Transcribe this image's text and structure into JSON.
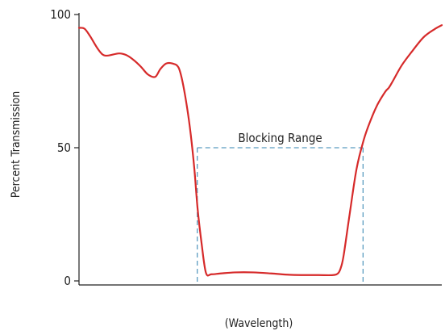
{
  "chart_data": {
    "type": "line",
    "title": "",
    "xlabel": "(Wavelength)",
    "ylabel": "Percent Transmission",
    "ylim": [
      0,
      100
    ],
    "yticks": [
      0,
      50,
      100
    ],
    "xlim": [
      0,
      100
    ],
    "grid": false,
    "series": [
      {
        "color": "#d62a2a",
        "x": [
          0,
          1.5,
          3,
          5,
          6.5,
          8,
          11,
          13,
          15,
          17,
          19,
          21,
          22.4,
          24,
          25.8,
          27.4,
          28.5,
          29.8,
          30.8,
          31.8,
          32.7,
          33.8,
          35,
          36.5,
          39,
          43,
          48,
          53,
          58,
          62,
          66,
          70,
          71.5,
          72.3,
          73,
          74.6,
          76.5,
          78.5,
          80.3,
          82.2,
          84.4,
          85.4,
          86.5,
          89,
          92,
          95,
          98,
          100
        ],
        "y": [
          95,
          94.7,
          92,
          87.5,
          85,
          84.6,
          85.4,
          84.8,
          83,
          80.5,
          77.5,
          76.6,
          79.5,
          81.6,
          81.6,
          80.2,
          75,
          65,
          55,
          42,
          27,
          14,
          3,
          2.5,
          2.8,
          3.2,
          3.2,
          2.8,
          2.3,
          2.2,
          2.2,
          2.2,
          3,
          5.5,
          10,
          25,
          42,
          53,
          60,
          66,
          71,
          72.5,
          75,
          81,
          86.5,
          91.5,
          94.5,
          96
        ]
      }
    ],
    "annotations": [
      {
        "type": "range",
        "label": "Blocking Range",
        "x_start": 32.6,
        "x_end": 78.3,
        "y": 50,
        "color": "#5a9cc0",
        "style": "dashed"
      }
    ]
  }
}
